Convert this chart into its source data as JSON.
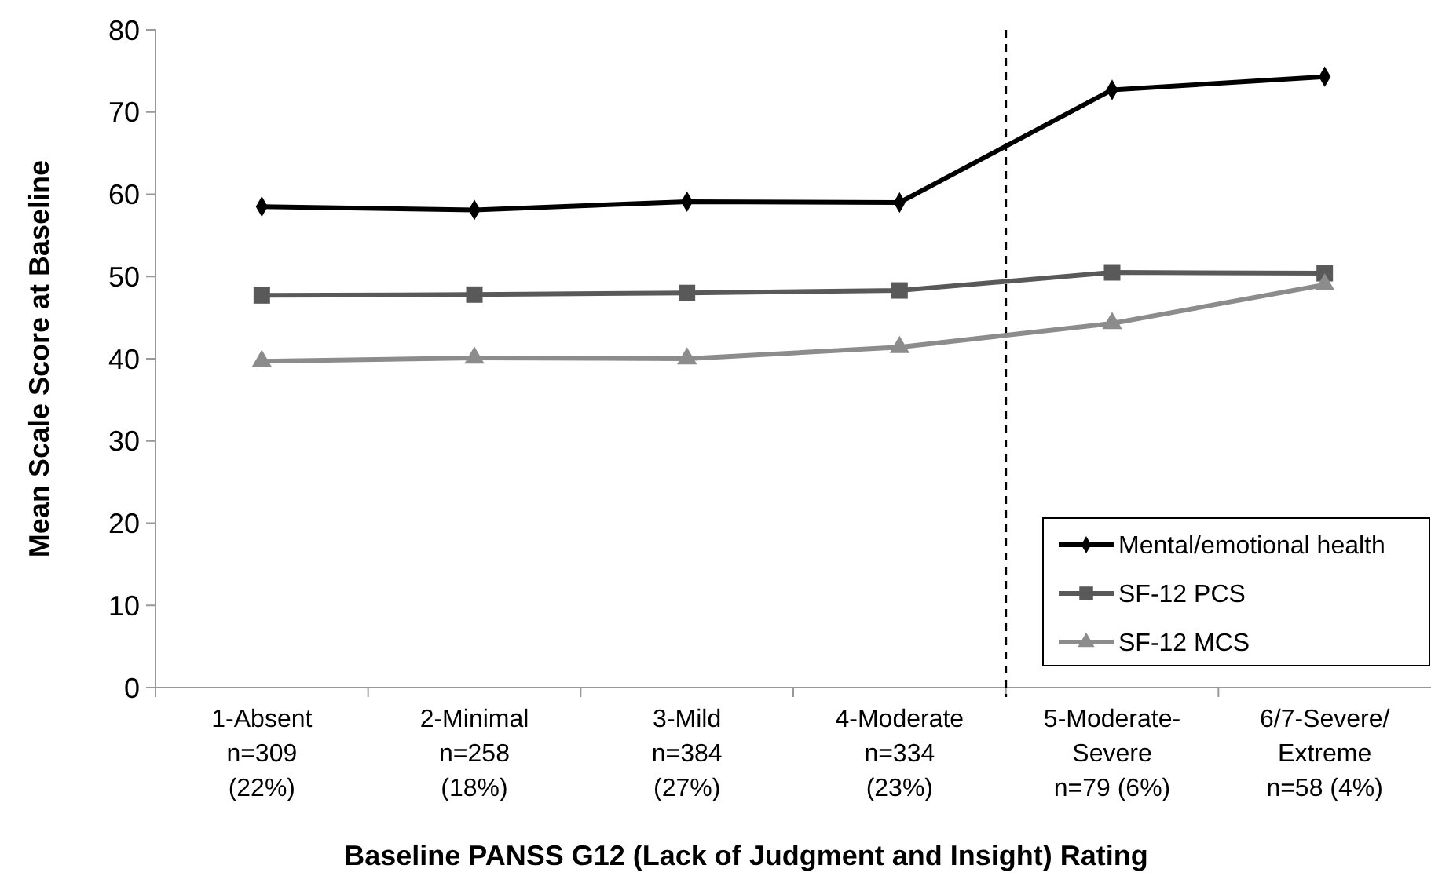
{
  "chart_data": {
    "type": "line",
    "xlabel": "Baseline PANSS G12 (Lack of Judgment and Insight) Rating",
    "ylabel": "Mean Scale Score at Baseline",
    "categories": [
      "1-Absent\nn=309\n(22%)",
      "2-Minimal\nn=258\n(18%)",
      "3-Mild\nn=384\n(27%)",
      "4-Moderate\nn=334\n(23%)",
      "5-Moderate-\nSevere\nn=79 (6%)",
      "6/7-Severe/\nExtreme\nn=58 (4%)"
    ],
    "series": [
      {
        "name": "Mental/emotional health",
        "color": "#000000",
        "marker": "diamond",
        "values": [
          58.5,
          58.1,
          59.1,
          59.0,
          72.7,
          74.3
        ]
      },
      {
        "name": "SF-12 PCS",
        "color": "#595959",
        "marker": "square",
        "values": [
          47.7,
          47.8,
          48.0,
          48.3,
          50.5,
          50.4
        ]
      },
      {
        "name": "SF-12 MCS",
        "color": "#8c8c8c",
        "marker": "triangle",
        "values": [
          39.7,
          40.1,
          40.0,
          41.4,
          44.3,
          49.0
        ]
      }
    ],
    "ylim": [
      0,
      80
    ],
    "yticks": [
      0,
      10,
      20,
      30,
      40,
      50,
      60,
      70,
      80
    ],
    "grid": false,
    "legend": "bottom right"
  }
}
